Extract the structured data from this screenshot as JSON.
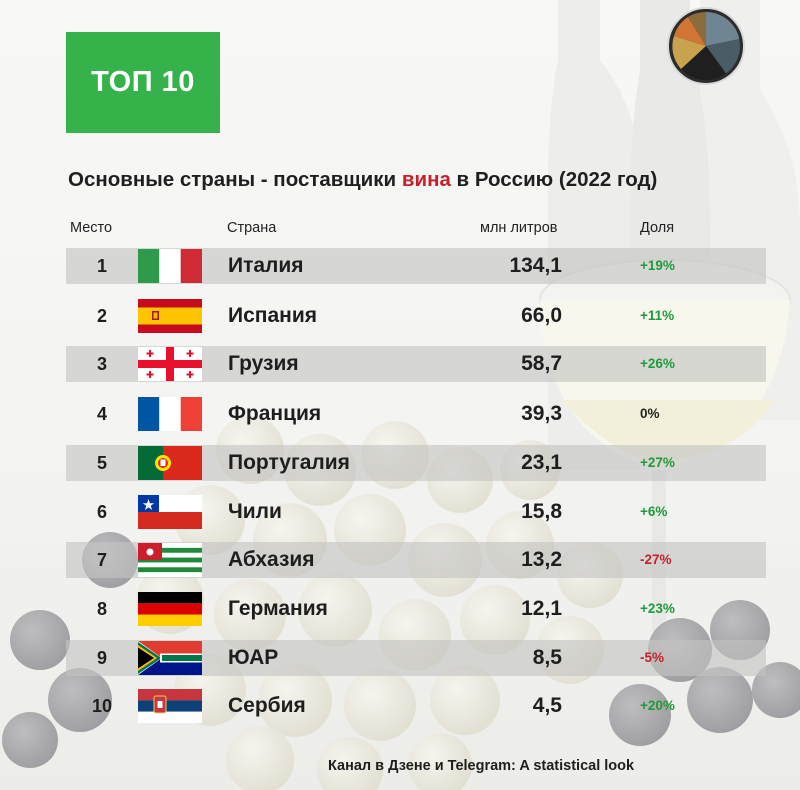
{
  "badge": "ТОП 10",
  "title": {
    "before": "Основные страны - поставщики ",
    "highlight": "вина",
    "after": " в Россию (2022 год)"
  },
  "headers": {
    "place": "Место",
    "country": "Страна",
    "volume": "млн литров",
    "share": "Доля"
  },
  "colors": {
    "accent": "#35b34a",
    "highlight": "#c8202b",
    "positive": "#1f9a3a",
    "negative": "#c8202b",
    "neutral": "#222222"
  },
  "chart_data": {
    "type": "table",
    "columns": [
      "Место",
      "Страна",
      "млн литров",
      "Доля"
    ],
    "rows": [
      {
        "place": "1",
        "country": "Италия",
        "volume": "134,1",
        "share": "+19%",
        "flag": "italy"
      },
      {
        "place": "2",
        "country": "Испания",
        "volume": "66,0",
        "share": "+11%",
        "flag": "spain"
      },
      {
        "place": "3",
        "country": "Грузия",
        "volume": "58,7",
        "share": "+26%",
        "flag": "georgia"
      },
      {
        "place": "4",
        "country": "Франция",
        "volume": "39,3",
        "share": "0%",
        "flag": "france"
      },
      {
        "place": "5",
        "country": "Португалия",
        "volume": "23,1",
        "share": "+27%",
        "flag": "portugal"
      },
      {
        "place": "6",
        "country": "Чили",
        "volume": "15,8",
        "share": "+6%",
        "flag": "chile"
      },
      {
        "place": "7",
        "country": "Абхазия",
        "volume": "13,2",
        "share": "-27%",
        "flag": "abkhazia"
      },
      {
        "place": "8",
        "country": "Германия",
        "volume": "12,1",
        "share": "+23%",
        "flag": "germany"
      },
      {
        "place": "9",
        "country": "ЮАР",
        "volume": "8,5",
        "share": "-5%",
        "flag": "south-africa"
      },
      {
        "place": "10",
        "country": "Сербия",
        "volume": "4,5",
        "share": "+20%",
        "flag": "serbia"
      }
    ]
  },
  "footer": "Канал в Дзене и Telegram: A statistical look"
}
